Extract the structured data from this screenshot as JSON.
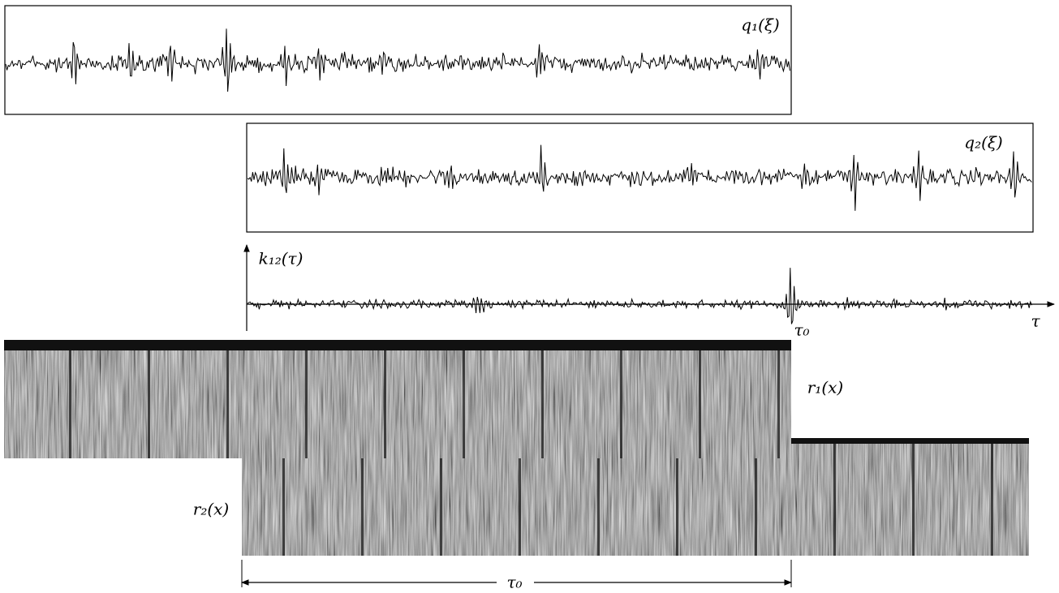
{
  "signals": {
    "q1": {
      "label": "q₁(ξ)"
    },
    "q2": {
      "label": "q₂(ξ)"
    }
  },
  "correlation": {
    "label": "k₁₂(τ)",
    "peak_label": "τ₀",
    "axis_label": "τ"
  },
  "images": {
    "r1": {
      "label": "r₁(x)"
    },
    "r2": {
      "label": "r₂(x)"
    }
  },
  "shift": {
    "label": "τ₀"
  }
}
